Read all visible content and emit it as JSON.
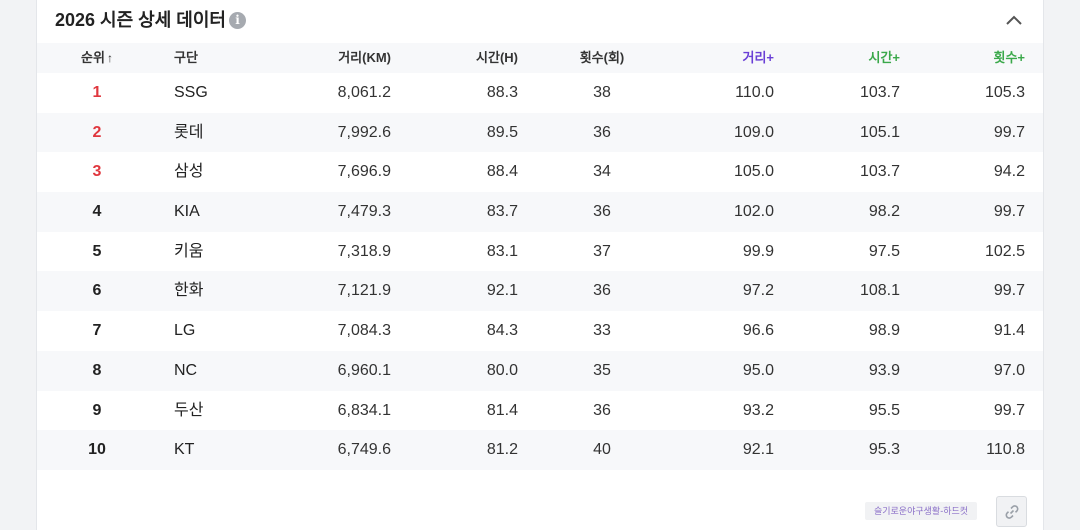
{
  "panel": {
    "title": "2026 시즌 상세 데이터",
    "info_icon": "info-icon",
    "collapse_icon": "chevron-up-icon"
  },
  "table": {
    "headers": {
      "rank": "순위",
      "rank_sort": "↑",
      "team": "구단",
      "distance": "거리(KM)",
      "time": "시간(H)",
      "count": "횟수(회)",
      "distance_plus": "거리+",
      "time_plus": "시간+",
      "count_plus": "횟수+"
    },
    "rows": [
      {
        "rank": "1",
        "team": "SSG",
        "distance": "8,061.2",
        "time": "88.3",
        "count": "38",
        "distance_plus": "110.0",
        "time_plus": "103.7",
        "count_plus": "105.3"
      },
      {
        "rank": "2",
        "team": "롯데",
        "distance": "7,992.6",
        "time": "89.5",
        "count": "36",
        "distance_plus": "109.0",
        "time_plus": "105.1",
        "count_plus": "99.7"
      },
      {
        "rank": "3",
        "team": "삼성",
        "distance": "7,696.9",
        "time": "88.4",
        "count": "34",
        "distance_plus": "105.0",
        "time_plus": "103.7",
        "count_plus": "94.2"
      },
      {
        "rank": "4",
        "team": "KIA",
        "distance": "7,479.3",
        "time": "83.7",
        "count": "36",
        "distance_plus": "102.0",
        "time_plus": "98.2",
        "count_plus": "99.7"
      },
      {
        "rank": "5",
        "team": "키움",
        "distance": "7,318.9",
        "time": "83.1",
        "count": "37",
        "distance_plus": "99.9",
        "time_plus": "97.5",
        "count_plus": "102.5"
      },
      {
        "rank": "6",
        "team": "한화",
        "distance": "7,121.9",
        "time": "92.1",
        "count": "36",
        "distance_plus": "97.2",
        "time_plus": "108.1",
        "count_plus": "99.7"
      },
      {
        "rank": "7",
        "team": "LG",
        "distance": "7,084.3",
        "time": "84.3",
        "count": "33",
        "distance_plus": "96.6",
        "time_plus": "98.9",
        "count_plus": "91.4"
      },
      {
        "rank": "8",
        "team": "NC",
        "distance": "6,960.1",
        "time": "80.0",
        "count": "35",
        "distance_plus": "95.0",
        "time_plus": "93.9",
        "count_plus": "97.0"
      },
      {
        "rank": "9",
        "team": "두산",
        "distance": "6,834.1",
        "time": "81.4",
        "count": "36",
        "distance_plus": "93.2",
        "time_plus": "95.5",
        "count_plus": "99.7"
      },
      {
        "rank": "10",
        "team": "KT",
        "distance": "6,749.6",
        "time": "81.2",
        "count": "40",
        "distance_plus": "92.1",
        "time_plus": "95.3",
        "count_plus": "110.8"
      }
    ]
  },
  "footer": {
    "tag": "슬기로운야구생활-하드컷",
    "link_icon": "link-icon"
  },
  "colors": {
    "top_rank": "#e0373e",
    "distance_plus_header": "#6a3fd6",
    "time_plus_header": "#3aa84a",
    "count_plus_header": "#3aa84a"
  }
}
